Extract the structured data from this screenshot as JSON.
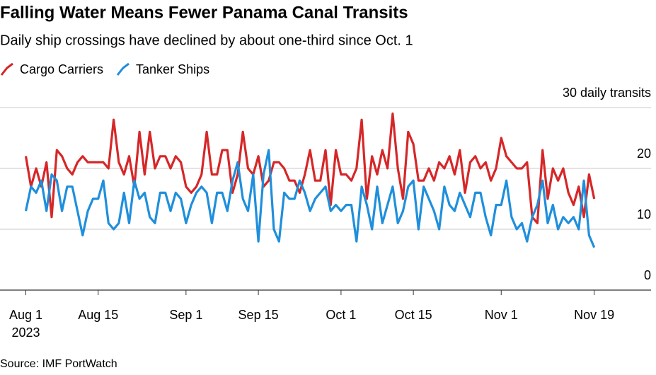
{
  "chart_data": {
    "type": "line",
    "title": "Falling Water Means Fewer Panama Canal Transits",
    "subtitle": "Daily ship crossings have declined by about one-third since Oct. 1",
    "source": "Source: IMF PortWatch",
    "x_year_label": "2023",
    "x": [
      "2023-08-01",
      "2023-08-02",
      "2023-08-03",
      "2023-08-04",
      "2023-08-05",
      "2023-08-06",
      "2023-08-07",
      "2023-08-08",
      "2023-08-09",
      "2023-08-10",
      "2023-08-11",
      "2023-08-12",
      "2023-08-13",
      "2023-08-14",
      "2023-08-15",
      "2023-08-16",
      "2023-08-17",
      "2023-08-18",
      "2023-08-19",
      "2023-08-20",
      "2023-08-21",
      "2023-08-22",
      "2023-08-23",
      "2023-08-24",
      "2023-08-25",
      "2023-08-26",
      "2023-08-27",
      "2023-08-28",
      "2023-08-29",
      "2023-08-30",
      "2023-08-31",
      "2023-09-01",
      "2023-09-02",
      "2023-09-03",
      "2023-09-04",
      "2023-09-05",
      "2023-09-06",
      "2023-09-07",
      "2023-09-08",
      "2023-09-09",
      "2023-09-10",
      "2023-09-11",
      "2023-09-12",
      "2023-09-13",
      "2023-09-14",
      "2023-09-15",
      "2023-09-16",
      "2023-09-17",
      "2023-09-18",
      "2023-09-19",
      "2023-09-20",
      "2023-09-21",
      "2023-09-22",
      "2023-09-23",
      "2023-09-24",
      "2023-09-25",
      "2023-09-26",
      "2023-09-27",
      "2023-09-28",
      "2023-09-29",
      "2023-09-30",
      "2023-10-01",
      "2023-10-02",
      "2023-10-03",
      "2023-10-04",
      "2023-10-05",
      "2023-10-06",
      "2023-10-07",
      "2023-10-08",
      "2023-10-09",
      "2023-10-10",
      "2023-10-11",
      "2023-10-12",
      "2023-10-13",
      "2023-10-14",
      "2023-10-15",
      "2023-10-16",
      "2023-10-17",
      "2023-10-18",
      "2023-10-19",
      "2023-10-20",
      "2023-10-21",
      "2023-10-22",
      "2023-10-23",
      "2023-10-24",
      "2023-10-25",
      "2023-10-26",
      "2023-10-27",
      "2023-10-28",
      "2023-10-29",
      "2023-10-30",
      "2023-10-31",
      "2023-11-01",
      "2023-11-02",
      "2023-11-03",
      "2023-11-04",
      "2023-11-05",
      "2023-11-06",
      "2023-11-07",
      "2023-11-08",
      "2023-11-09",
      "2023-11-10",
      "2023-11-11",
      "2023-11-12",
      "2023-11-13",
      "2023-11-14",
      "2023-11-15",
      "2023-11-16",
      "2023-11-17",
      "2023-11-18",
      "2023-11-19"
    ],
    "series": [
      {
        "name": "Cargo Carriers",
        "color": "#d62728",
        "values": [
          22,
          17,
          20,
          17,
          21,
          12,
          23,
          22,
          20,
          19,
          21,
          22,
          21,
          21,
          21,
          21,
          20,
          28,
          21,
          19,
          22,
          17,
          26,
          19,
          26,
          20,
          22,
          22,
          20,
          22,
          21,
          17,
          16,
          17,
          19,
          26,
          19,
          19,
          23,
          23,
          16,
          19,
          26,
          20,
          19,
          22,
          17,
          18,
          21,
          21,
          20,
          18,
          18,
          16,
          19,
          23,
          18,
          18,
          23,
          14,
          23,
          19,
          19,
          18,
          20,
          28,
          15,
          22,
          19,
          23,
          20,
          29,
          20,
          15,
          26,
          24,
          18,
          18,
          20,
          18,
          21,
          20,
          22,
          19,
          23,
          16,
          21,
          22,
          20,
          21,
          18,
          20,
          25,
          22,
          21,
          20,
          20,
          21,
          12,
          11,
          23,
          15,
          20,
          18,
          20,
          16,
          14,
          17,
          12,
          19,
          15
        ]
      },
      {
        "name": "Tanker Ships",
        "color": "#1f8fdc",
        "values": [
          13,
          17,
          16,
          18,
          13,
          19,
          18,
          13,
          17,
          17,
          13,
          9,
          13,
          15,
          15,
          18,
          11,
          10,
          11,
          16,
          11,
          18,
          15,
          16,
          12,
          11,
          16,
          16,
          13,
          16,
          15,
          11,
          14,
          16,
          17,
          16,
          11,
          16,
          16,
          13,
          18,
          21,
          15,
          13,
          19,
          8,
          19,
          23,
          10,
          8,
          16,
          15,
          15,
          18,
          16,
          13,
          15,
          16,
          17,
          13,
          14,
          13,
          14,
          14,
          8,
          17,
          14,
          10,
          17,
          11,
          14,
          17,
          11,
          13,
          17,
          18,
          10,
          17,
          15,
          13,
          10,
          17,
          14,
          13,
          16,
          14,
          12,
          16,
          16,
          12,
          9,
          14,
          14,
          18,
          12,
          10,
          11,
          8,
          12,
          14,
          18,
          11,
          14,
          10,
          12,
          11,
          12,
          10,
          18,
          9,
          7
        ]
      }
    ],
    "xlim": [
      "2023-07-27",
      "2023-11-30"
    ],
    "xticks": [
      {
        "value": "2023-08-01",
        "label": "Aug 1"
      },
      {
        "value": "2023-08-15",
        "label": "Aug 15"
      },
      {
        "value": "2023-09-01",
        "label": "Sep 1"
      },
      {
        "value": "2023-09-15",
        "label": "Sep 15"
      },
      {
        "value": "2023-10-01",
        "label": "Oct 1"
      },
      {
        "value": "2023-10-15",
        "label": "Oct 15"
      },
      {
        "value": "2023-11-01",
        "label": "Nov 1"
      },
      {
        "value": "2023-11-19",
        "label": "Nov 19"
      }
    ],
    "ylim": [
      0,
      30
    ],
    "yticks": [
      0,
      10,
      20,
      {
        "value": 30,
        "label": "30 daily transits"
      }
    ],
    "grid": true
  }
}
